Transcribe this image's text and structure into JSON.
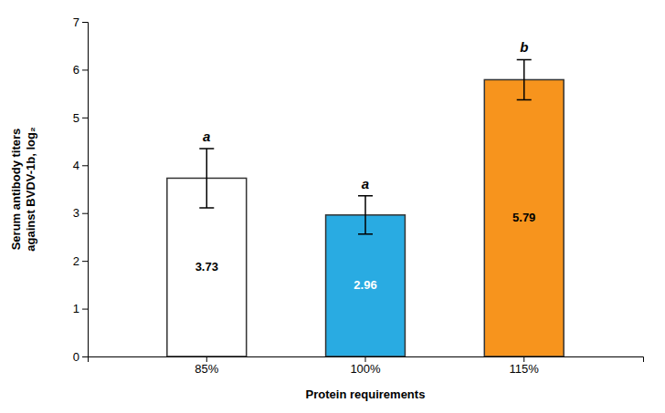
{
  "chart_data": {
    "type": "bar",
    "xlabel": "Protein requirements",
    "ylabel": "Serum antibody titers\nagainst BVDV-1b, log₂",
    "categories": [
      "85%",
      "100%",
      "115%"
    ],
    "values": [
      3.73,
      2.96,
      5.79
    ],
    "errors": [
      0.62,
      0.4,
      0.42
    ],
    "colors": [
      "white",
      "#29ABE2",
      "#F7941D"
    ],
    "annotations": [
      "a",
      "a",
      "b"
    ],
    "data_labels": true,
    "ylim": [
      0,
      7
    ],
    "yticks": [
      0,
      1,
      2,
      3,
      4,
      5,
      6,
      7
    ],
    "grid": false
  }
}
